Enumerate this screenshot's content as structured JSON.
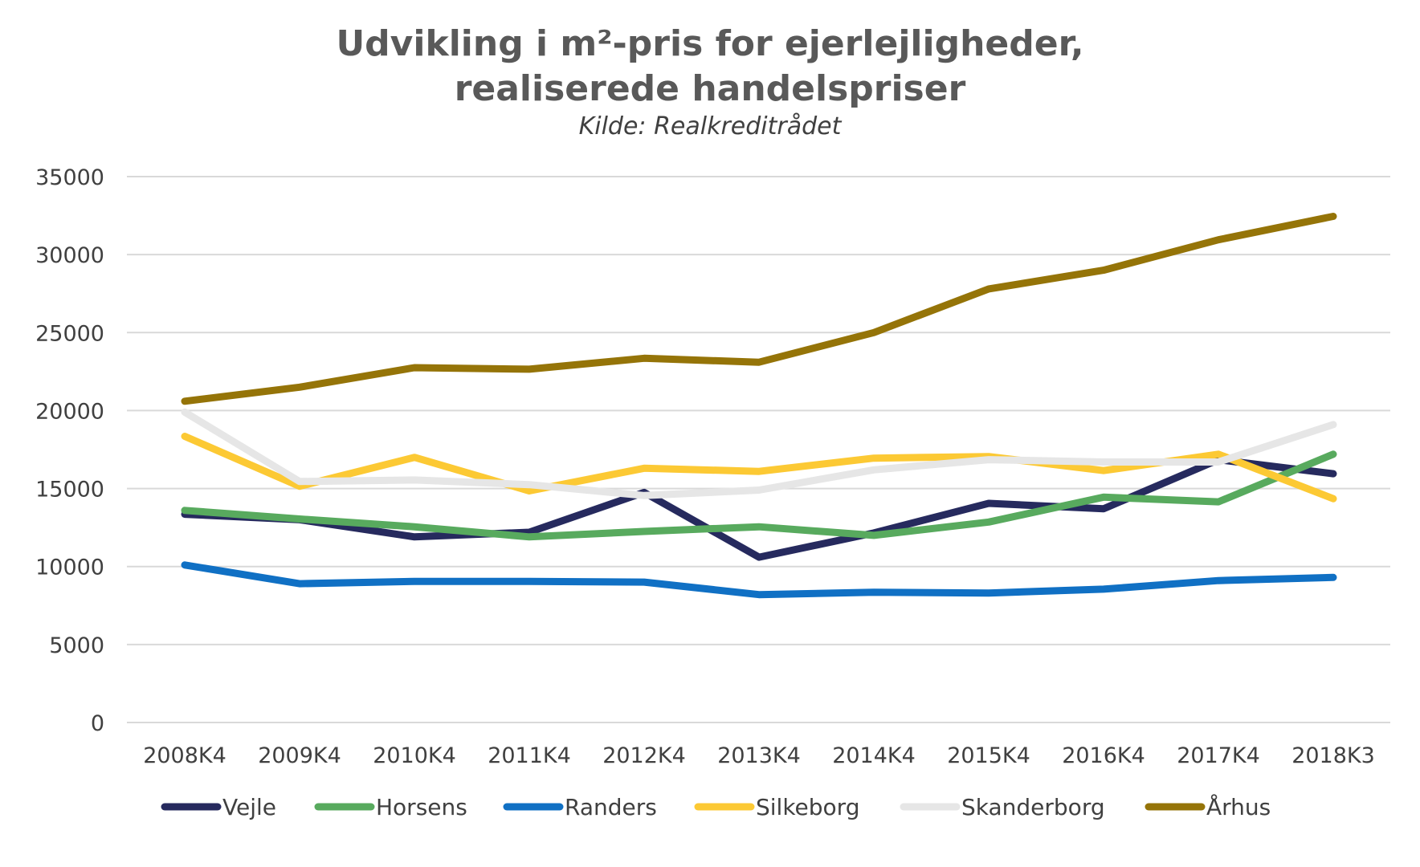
{
  "chart_data": {
    "type": "line",
    "title": "Udvikling i m²-pris for ejerlejligheder, realiserede handelspriser",
    "title_lines": [
      "Udvikling i m²-pris for ejerlejligheder,",
      "realiserede handelspriser"
    ],
    "subtitle": "Kilde: Realkreditrådet",
    "xlabel": "",
    "ylabel": "",
    "ylim": [
      0,
      35000
    ],
    "yticks": [
      0,
      5000,
      10000,
      15000,
      20000,
      25000,
      30000,
      35000
    ],
    "ytick_labels": [
      "0",
      "5000",
      "10000",
      "15000",
      "20000",
      "25000",
      "30000",
      "35000"
    ],
    "grid": true,
    "legend_position": "bottom",
    "categories": [
      "2008K4",
      "2009K4",
      "2010K4",
      "2011K4",
      "2012K4",
      "2013K4",
      "2014K4",
      "2015K4",
      "2016K4",
      "2017K4",
      "2018K3"
    ],
    "series": [
      {
        "name": "Vejle",
        "color": "#262a5e",
        "values": [
          13350,
          13000,
          11900,
          12200,
          14750,
          10600,
          12150,
          14050,
          13700,
          16850,
          15950
        ]
      },
      {
        "name": "Horsens",
        "color": "#58aa5e",
        "values": [
          13600,
          13050,
          12550,
          11900,
          12250,
          12550,
          12000,
          12850,
          14450,
          14150,
          17200
        ]
      },
      {
        "name": "Randers",
        "color": "#1070c4",
        "values": [
          10100,
          8900,
          9050,
          9050,
          9000,
          8200,
          8350,
          8300,
          8550,
          9100,
          9300
        ]
      },
      {
        "name": "Silkeborg",
        "color": "#fcc934",
        "values": [
          18350,
          15150,
          17000,
          14850,
          16300,
          16100,
          16950,
          17050,
          16150,
          17200,
          14350
        ]
      },
      {
        "name": "Skanderborg",
        "color": "#e6e6e6",
        "values": [
          19900,
          15450,
          15550,
          15250,
          14550,
          14900,
          16200,
          16850,
          16700,
          16700,
          19100
        ]
      },
      {
        "name": "Århus",
        "color": "#957408",
        "values": [
          20600,
          21500,
          22750,
          22650,
          23350,
          23100,
          25000,
          27800,
          29000,
          30950,
          32450
        ]
      }
    ]
  },
  "colors": {
    "gridline": "#d9d9d9",
    "text": "#404040",
    "title": "#595959"
  }
}
